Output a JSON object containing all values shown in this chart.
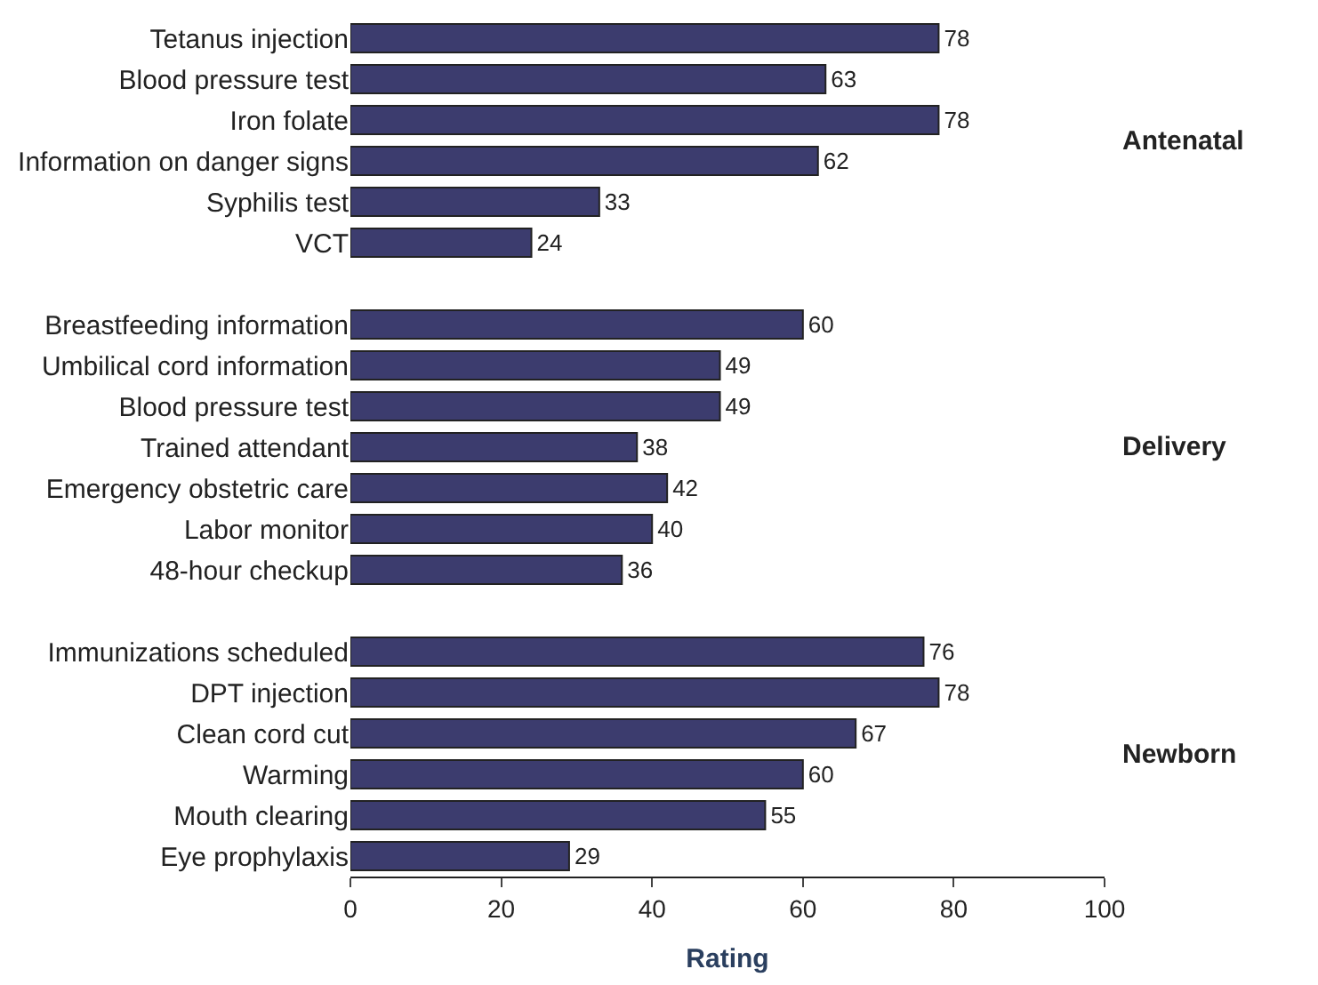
{
  "chart_data": {
    "type": "bar",
    "orientation": "horizontal",
    "xlabel": "Rating",
    "categories": [
      "Tetanus injection",
      "Blood pressure test",
      "Iron folate",
      "Information on danger signs",
      "Syphilis test",
      "VCT",
      null,
      "Breastfeeding information",
      "Umbilical cord information",
      "Blood pressure test",
      "Trained attendant",
      "Emergency obstetric care",
      "Labor monitor",
      "48-hour checkup",
      null,
      "Immunizations scheduled",
      "DPT injection",
      "Clean cord cut",
      "Warming",
      "Mouth clearing",
      "Eye prophylaxis"
    ],
    "values": [
      78,
      63,
      78,
      62,
      33,
      24,
      null,
      60,
      49,
      49,
      38,
      42,
      40,
      36,
      null,
      76,
      78,
      67,
      60,
      55,
      29
    ],
    "color": "#3c3c6e",
    "xlim": [
      0,
      100
    ],
    "xticks": [
      0,
      20,
      40,
      60,
      80,
      100
    ],
    "data_labels": true,
    "annotations": [
      "Antenatal",
      "Delivery",
      "Newborn"
    ]
  }
}
